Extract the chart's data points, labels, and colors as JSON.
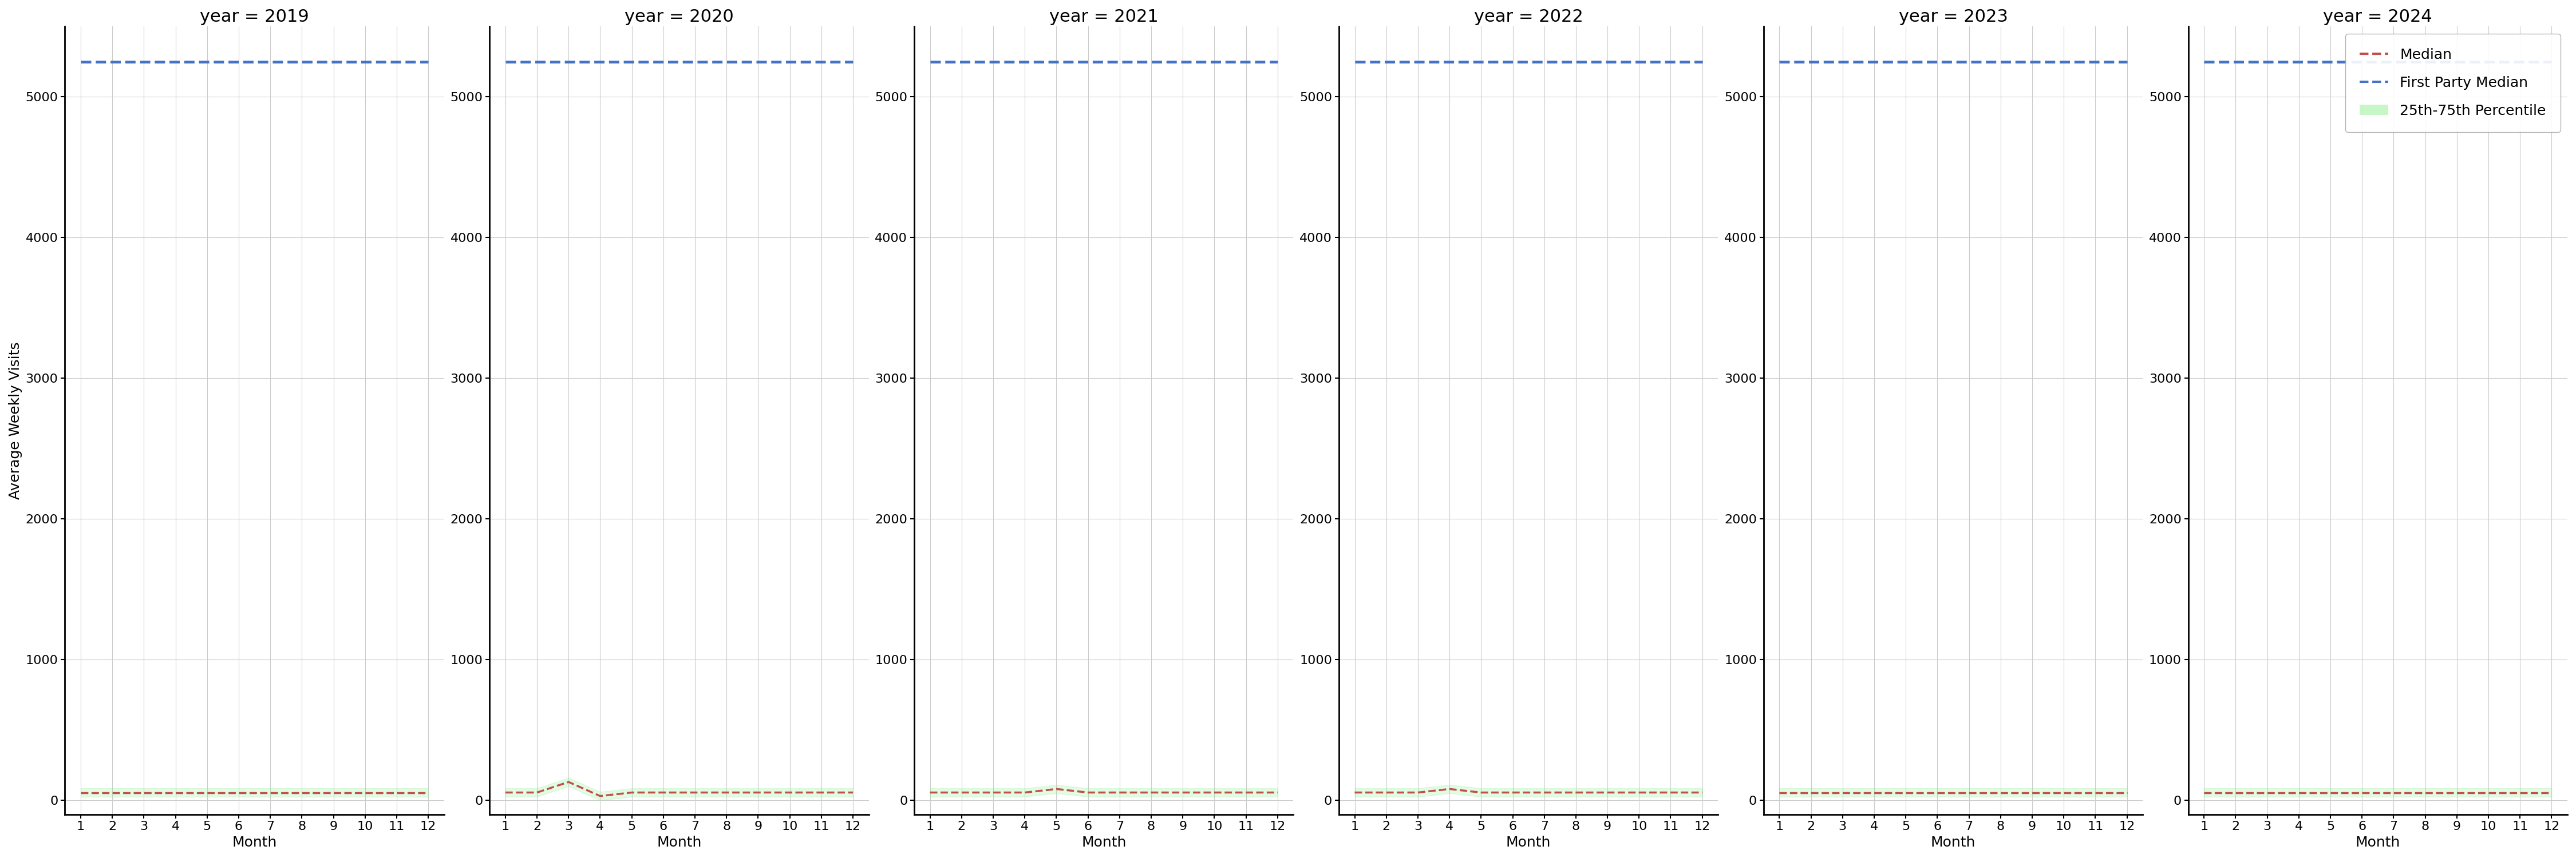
{
  "years": [
    2019,
    2020,
    2021,
    2022,
    2023,
    2024
  ],
  "months": [
    1,
    2,
    3,
    4,
    5,
    6,
    7,
    8,
    9,
    10,
    11,
    12
  ],
  "blue_median_value": 5250,
  "red_median_values": {
    "2019": [
      55,
      55,
      55,
      55,
      55,
      55,
      55,
      55,
      55,
      55,
      55,
      55
    ],
    "2020": [
      55,
      55,
      130,
      30,
      55,
      55,
      55,
      55,
      55,
      55,
      55,
      55
    ],
    "2021": [
      55,
      55,
      55,
      55,
      80,
      55,
      55,
      55,
      55,
      55,
      55,
      55
    ],
    "2022": [
      55,
      55,
      55,
      80,
      55,
      55,
      55,
      55,
      55,
      55,
      55,
      55
    ],
    "2023": [
      55,
      55,
      55,
      55,
      55,
      55,
      55,
      55,
      55,
      55,
      55,
      55
    ],
    "2024": [
      55,
      55,
      55,
      55,
      55,
      55,
      55,
      55,
      55,
      55,
      55,
      55
    ]
  },
  "blue_color": "#4472C4",
  "red_color": "#C0504D",
  "fill_color": "#90EE90",
  "fill_alpha": 0.25,
  "ylim": [
    -100,
    5500
  ],
  "yticks": [
    0,
    1000,
    2000,
    3000,
    4000,
    5000
  ],
  "xlabel": "Month",
  "ylabel": "Average Weekly Visits",
  "legend_labels": [
    "Median",
    "First Party Median",
    "25th-75th Percentile"
  ],
  "background_color": "white",
  "grid_color": "#cccccc",
  "title_fontsize": 22,
  "axis_fontsize": 18,
  "tick_fontsize": 16,
  "legend_fontsize": 18
}
